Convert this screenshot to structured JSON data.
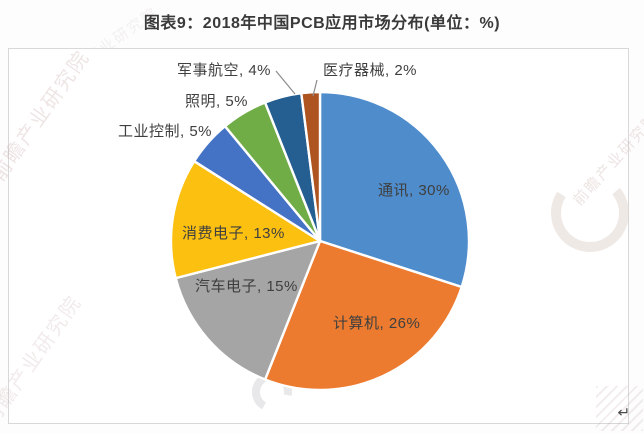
{
  "chart": {
    "title": "图表9：2018年中国PCB应用市场分布(单位：%)"
  },
  "chart_data": {
    "type": "pie",
    "title": "图表9：2018年中国PCB应用市场分布(单位：%)",
    "unit": "%",
    "start_angle": "12-o-clock",
    "direction": "clockwise",
    "legend": "none",
    "categories": [
      "通讯",
      "计算机",
      "汽车电子",
      "消费电子",
      "工业控制",
      "照明",
      "军事航空",
      "医疗器械"
    ],
    "values": [
      30,
      26,
      15,
      13,
      5,
      5,
      4,
      2
    ],
    "colors": [
      "#4e8ccb",
      "#ec7b2f",
      "#a5a5a5",
      "#fcc010",
      "#4472c4",
      "#70ad47",
      "#255e91",
      "#ad5420"
    ],
    "slice_label_format": "{category}, {value}%",
    "label_color": "#3f3f3f",
    "slice_border_color": "#ffffff",
    "callout_categories": [
      "军事航空",
      "医疗器械"
    ]
  },
  "annotations": {
    "return_mark": "↵"
  },
  "watermarks": {
    "brand_text": "前瞻产业研究院"
  }
}
